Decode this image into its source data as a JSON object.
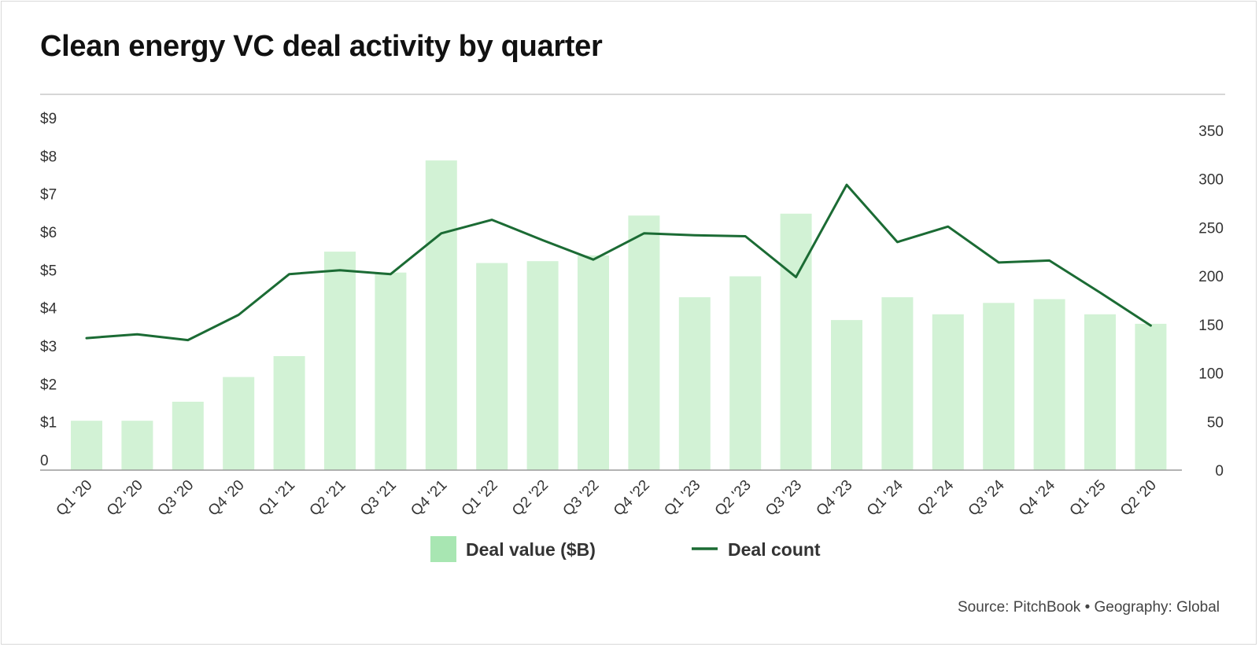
{
  "title": "Clean energy VC deal activity by quarter",
  "source": "Source: PitchBook • Geography: Global",
  "colors": {
    "bar": "#d2f2d5",
    "legend_bar": "#a8e6b2",
    "line": "#1b6b34",
    "axis": "#9a9a9a",
    "rule": "#d6d6d6"
  },
  "chart_data": {
    "type": "bar",
    "categories": [
      "Q1 '20",
      "Q2 '20",
      "Q3 '20",
      "Q4 '20",
      "Q1 '21",
      "Q2 '21",
      "Q3 '21",
      "Q4 '21",
      "Q1 '22",
      "Q2 '22",
      "Q3 '22",
      "Q4 '22",
      "Q1 '23",
      "Q2 '23",
      "Q3 '23",
      "Q4 '23",
      "Q1 '24",
      "Q2 '24",
      "Q3 '24",
      "Q4 '24",
      "Q1 '25",
      "Q2 '20"
    ],
    "series": [
      {
        "name": "Deal value ($B)",
        "type": "bar",
        "axis": "left",
        "values": [
          1.3,
          1.3,
          1.8,
          2.45,
          3.0,
          5.75,
          5.2,
          8.15,
          5.45,
          5.5,
          5.65,
          6.7,
          4.55,
          5.1,
          6.75,
          3.95,
          4.55,
          4.1,
          4.4,
          4.5,
          4.1,
          3.85
        ]
      },
      {
        "name": "Deal count",
        "type": "line",
        "axis": "right",
        "values": [
          136,
          140,
          134,
          160,
          202,
          206,
          202,
          244,
          258,
          237,
          217,
          244,
          242,
          241,
          199,
          294,
          235,
          251,
          214,
          216,
          183,
          149
        ]
      }
    ],
    "left_axis": {
      "ticks": [
        "0",
        "$1",
        "$2",
        "$3",
        "$4",
        "$5",
        "$6",
        "$7",
        "$8",
        "$9"
      ],
      "range": [
        0,
        9.15
      ]
    },
    "right_axis": {
      "ticks": [
        "0",
        "50",
        "100",
        "150",
        "200",
        "250",
        "300",
        "350"
      ],
      "range": [
        0,
        350
      ]
    },
    "legend": {
      "position": "bottom-center",
      "entries": [
        "Deal value ($B)",
        "Deal count"
      ]
    },
    "grid": false
  }
}
